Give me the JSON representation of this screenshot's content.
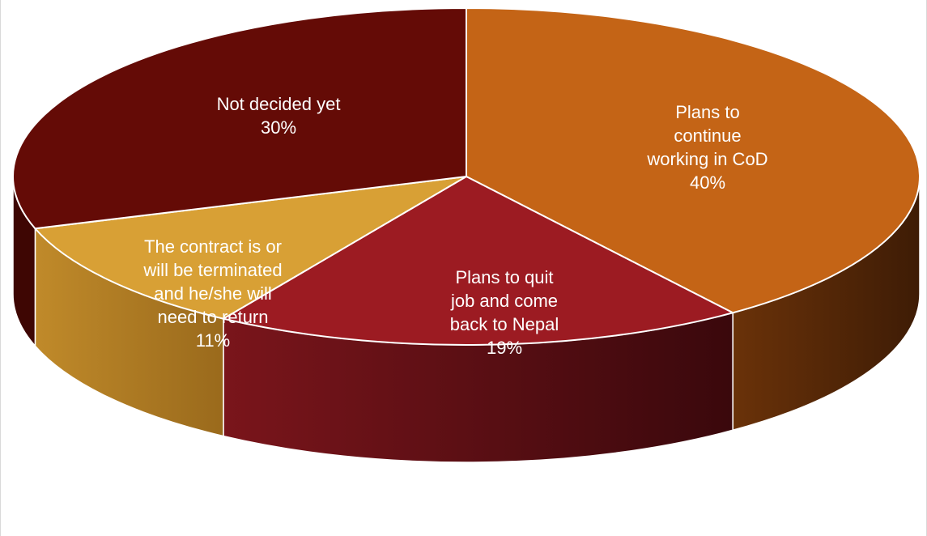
{
  "chart_data": {
    "type": "pie",
    "title": "",
    "slices": [
      {
        "label": "Plans to continue working in CoD",
        "label_lines": [
          "Plans to",
          "continue",
          "working in CoD"
        ],
        "value": 40,
        "value_label": "40%",
        "color": "#c46416",
        "side_color": "#5a2a08"
      },
      {
        "label": "Plans to quit job and come back to Nepal",
        "label_lines": [
          "Plans to quit",
          "job and come",
          "back to Nepal"
        ],
        "value": 19,
        "value_label": "19%",
        "color": "#9c1b22",
        "side_color": "#4a0c10"
      },
      {
        "label": "The contract is or will be terminated and he/she will need to return",
        "label_lines": [
          "The contract is or",
          "will be terminated",
          "and he/she will",
          "need to return"
        ],
        "value": 11,
        "value_label": "11%",
        "color": "#d8a035",
        "side_color": "#a87418"
      },
      {
        "label": "Not decided yet",
        "label_lines": [
          "Not decided yet"
        ],
        "value": 30,
        "value_label": "30%",
        "color": "#640b06",
        "side_color": "#3e0603"
      }
    ],
    "start_angle_deg": -90,
    "direction": "clockwise",
    "perspective": "3d"
  }
}
